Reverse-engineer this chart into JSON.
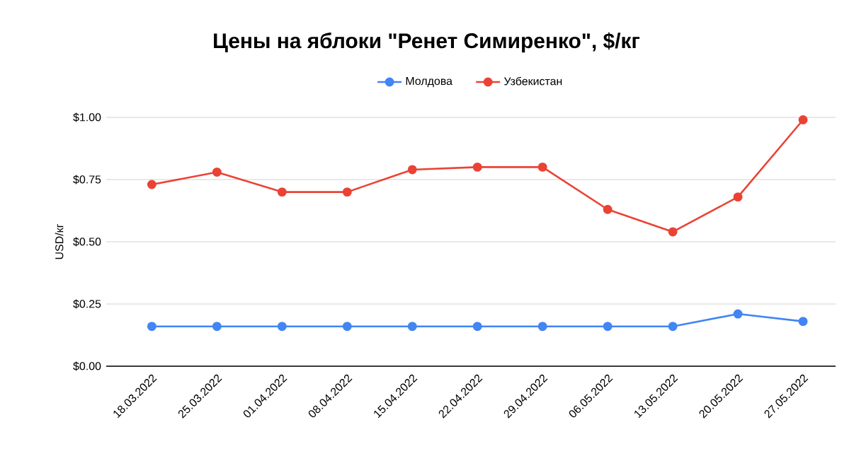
{
  "chart_data": {
    "type": "line",
    "title": "Цены на яблоки \"Ренет Симиренко\", $/кг",
    "ylabel": "USD/кг",
    "categories": [
      "18.03.2022",
      "25.03.2022",
      "01.04.2022",
      "08.04.2022",
      "15.04.2022",
      "22.04.2022",
      "29.04.2022",
      "06.05.2022",
      "13.05.2022",
      "20.05.2022",
      "27.05.2022"
    ],
    "series": [
      {
        "name": "Молдова",
        "color": "#4285f4",
        "values": [
          0.16,
          0.16,
          0.16,
          0.16,
          0.16,
          0.16,
          0.16,
          0.16,
          0.16,
          0.21,
          0.18
        ]
      },
      {
        "name": "Узбекистан",
        "color": "#ea4335",
        "values": [
          0.73,
          0.78,
          0.7,
          0.7,
          0.79,
          0.8,
          0.8,
          0.63,
          0.54,
          0.68,
          0.99
        ]
      }
    ],
    "ylim": [
      0,
      1
    ],
    "yticks": [
      {
        "value": 0,
        "label": "$0.00"
      },
      {
        "value": 0.25,
        "label": "$0.25"
      },
      {
        "value": 0.5,
        "label": "$0.50"
      },
      {
        "value": 0.75,
        "label": "$0.75"
      },
      {
        "value": 1,
        "label": "$1.00"
      }
    ],
    "grid": "y",
    "legend": "top",
    "marker": "circle",
    "line_style": "solid"
  }
}
